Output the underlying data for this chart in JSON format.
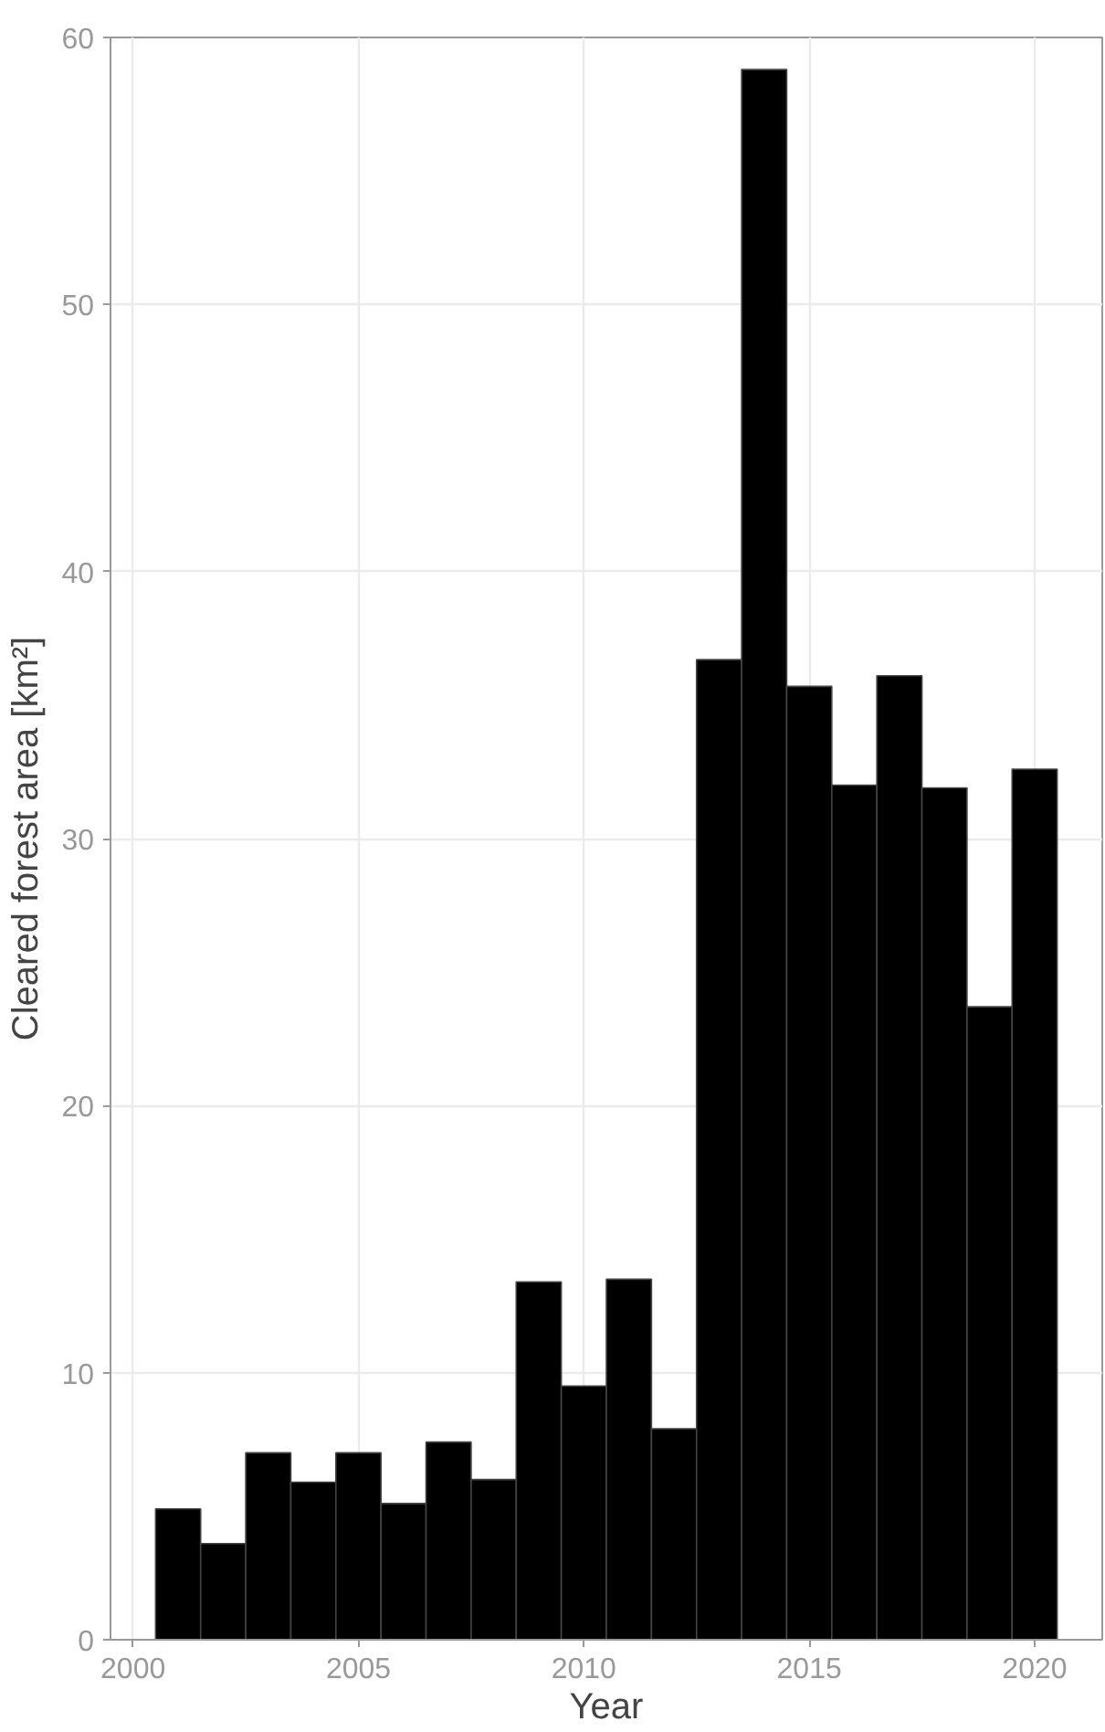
{
  "chart_data": {
    "type": "bar",
    "xlabel": "Year",
    "ylabel": "Cleared forest area [km²]",
    "x": [
      2001,
      2002,
      2003,
      2004,
      2005,
      2006,
      2007,
      2008,
      2009,
      2010,
      2011,
      2012,
      2013,
      2014,
      2015,
      2016,
      2017,
      2018,
      2019,
      2020
    ],
    "values": [
      4.9,
      3.6,
      7.0,
      5.9,
      7.0,
      5.1,
      7.4,
      6.0,
      13.4,
      9.5,
      13.5,
      7.9,
      36.7,
      58.8,
      35.7,
      32.0,
      36.1,
      31.9,
      23.7,
      32.6
    ],
    "color": "#000000",
    "xlim": [
      1999.5,
      2021.5
    ],
    "xticks": [
      2000,
      2005,
      2010,
      2015,
      2020
    ],
    "ylim": [
      0,
      60
    ],
    "yticks": [
      0,
      10,
      20,
      30,
      40,
      50,
      60
    ],
    "grid": true
  }
}
